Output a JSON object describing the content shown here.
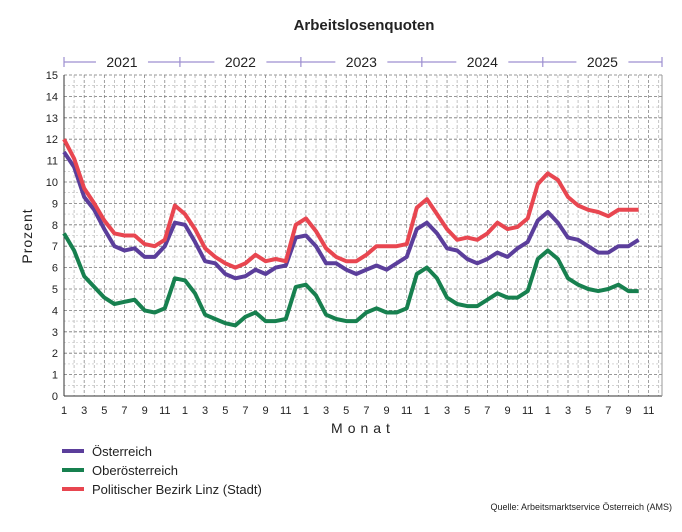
{
  "chart_data": {
    "type": "line",
    "title": "Arbeitslosenquoten",
    "xlabel": "Monat",
    "ylabel": "Prozent",
    "ylim": [
      0,
      15
    ],
    "yticks": [
      0,
      1,
      2,
      3,
      4,
      5,
      6,
      7,
      8,
      9,
      10,
      11,
      12,
      13,
      14,
      15
    ],
    "years": [
      "2021",
      "2022",
      "2023",
      "2024",
      "2025"
    ],
    "month_tick_labels": [
      "1",
      "3",
      "5",
      "7",
      "9",
      "11"
    ],
    "x_start": "2021-01",
    "x_end_axis": "2025-11",
    "grid": true,
    "legend_placement": "bottom-left",
    "series": [
      {
        "name": "Österreich",
        "color": "#5b3e9b",
        "values": [
          11.4,
          10.7,
          9.3,
          8.7,
          7.8,
          7.0,
          6.8,
          6.9,
          6.5,
          6.5,
          7.0,
          8.1,
          8.0,
          7.2,
          6.3,
          6.2,
          5.7,
          5.5,
          5.6,
          5.9,
          5.7,
          6.0,
          6.1,
          7.4,
          7.5,
          7.0,
          6.2,
          6.2,
          5.9,
          5.7,
          5.9,
          6.1,
          5.9,
          6.2,
          6.5,
          7.8,
          8.1,
          7.6,
          6.9,
          6.8,
          6.4,
          6.2,
          6.4,
          6.7,
          6.5,
          6.9,
          7.2,
          8.2,
          8.6,
          8.1,
          7.4,
          7.3,
          7.0,
          6.7,
          6.7,
          7.0,
          7.0,
          7.3
        ]
      },
      {
        "name": "Oberösterreich",
        "color": "#17804f",
        "values": [
          7.6,
          6.8,
          5.6,
          5.1,
          4.6,
          4.3,
          4.4,
          4.5,
          4.0,
          3.9,
          4.1,
          5.5,
          5.4,
          4.8,
          3.8,
          3.6,
          3.4,
          3.3,
          3.7,
          3.9,
          3.5,
          3.5,
          3.6,
          5.1,
          5.2,
          4.7,
          3.8,
          3.6,
          3.5,
          3.5,
          3.9,
          4.1,
          3.9,
          3.9,
          4.1,
          5.7,
          6.0,
          5.5,
          4.6,
          4.3,
          4.2,
          4.2,
          4.5,
          4.8,
          4.6,
          4.6,
          4.9,
          6.4,
          6.8,
          6.4,
          5.5,
          5.2,
          5.0,
          4.9,
          5.0,
          5.2,
          4.9,
          4.9
        ]
      },
      {
        "name": "Politischer Bezirk Linz (Stadt)",
        "color": "#e84650",
        "values": [
          12.0,
          11.1,
          9.7,
          9.0,
          8.2,
          7.6,
          7.5,
          7.5,
          7.1,
          7.0,
          7.3,
          8.9,
          8.5,
          7.8,
          6.9,
          6.5,
          6.2,
          6.0,
          6.2,
          6.6,
          6.3,
          6.4,
          6.3,
          8.0,
          8.3,
          7.7,
          6.9,
          6.5,
          6.3,
          6.3,
          6.6,
          7.0,
          7.0,
          7.0,
          7.1,
          8.8,
          9.2,
          8.5,
          7.8,
          7.3,
          7.4,
          7.3,
          7.6,
          8.1,
          7.8,
          7.9,
          8.3,
          9.9,
          10.4,
          10.1,
          9.3,
          8.9,
          8.7,
          8.6,
          8.4,
          8.7,
          8.7,
          8.7
        ]
      }
    ],
    "source": "Quelle: Arbeitsmarktservice Österreich (AMS)",
    "year_bar_color": "#9d8fd0"
  }
}
